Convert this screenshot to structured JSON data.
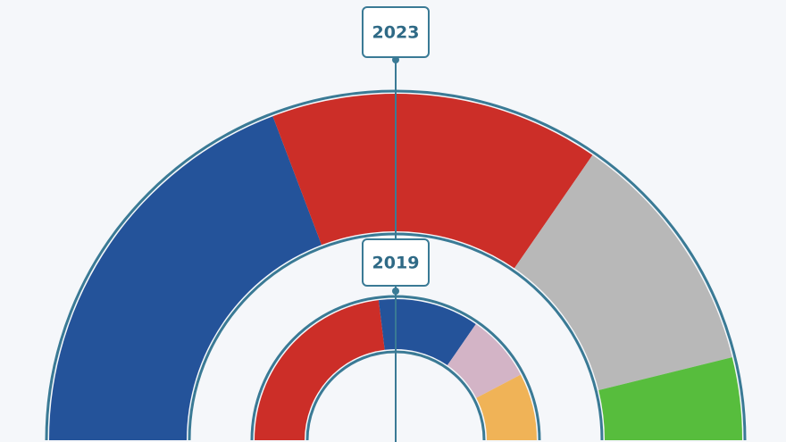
{
  "chart_data": [
    {
      "type": "half-donut",
      "title": "2023",
      "values": [
        5,
        4,
        3,
        1
      ],
      "colors": [
        "#24539a",
        "#cc2e28",
        "#b8b8b8",
        "#57bd3d"
      ]
    },
    {
      "type": "half-donut",
      "title": "2019",
      "values": [
        6,
        3,
        2,
        2
      ],
      "colors": [
        "#cc2e28",
        "#24539a",
        "#d3b4c6",
        "#f0b357"
      ]
    }
  ]
}
